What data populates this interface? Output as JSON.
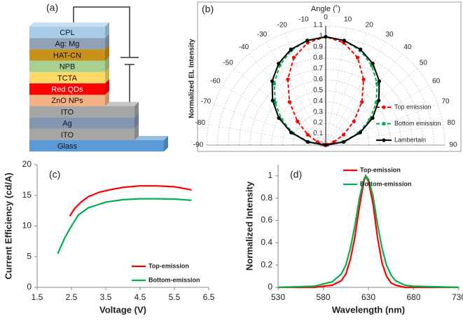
{
  "diagram": {
    "label": "(a)",
    "layers": [
      {
        "name": "CPL",
        "color": "#a9cde8"
      },
      {
        "name": "Ag:  Mg",
        "color": "#8fa2b8"
      },
      {
        "name": "HAT-CN",
        "color": "#c8921a"
      },
      {
        "name": "NPB",
        "color": "#a9d08e"
      },
      {
        "name": "TCTA",
        "color": "#ffd966"
      },
      {
        "name": "Red QDs",
        "color": "#ff0000"
      },
      {
        "name": "ZnO NPs",
        "color": "#f4b183"
      },
      {
        "name": "ITO",
        "color": "#a6a6a6"
      },
      {
        "name": "Ag",
        "color": "#8497b0"
      },
      {
        "name": "ITO",
        "color": "#a6a6a6"
      },
      {
        "name": "Glass",
        "color": "#5b9bd5"
      }
    ]
  },
  "chart_data": [
    {
      "type": "polar",
      "label": "(b)",
      "title": "Angle (˚)",
      "ylabel": "Normalized EL Intensity",
      "x": [
        -90,
        -80,
        -70,
        -60,
        -50,
        -40,
        -30,
        -20,
        -10,
        0,
        10,
        20,
        30,
        40,
        50,
        60,
        70,
        80,
        90
      ],
      "thetaticks": [
        -90,
        -80,
        -70,
        -60,
        -50,
        -40,
        -30,
        -20,
        -10,
        0,
        10,
        20,
        30,
        40,
        50,
        60,
        70,
        80,
        90
      ],
      "rlim": [
        0,
        1.1
      ],
      "rticks": [
        0,
        0.1,
        0.2,
        0.3,
        0.4,
        0.5,
        0.6,
        0.7,
        0.8,
        0.9,
        1,
        1.1
      ],
      "legend": "lower right",
      "grid": true,
      "series": [
        {
          "name": "Top emission",
          "color": "#ff0000",
          "linestyle": "dashed",
          "values": [
            0,
            0.02,
            0.08,
            0.19,
            0.34,
            0.52,
            0.7,
            0.86,
            0.96,
            1,
            0.96,
            0.86,
            0.7,
            0.52,
            0.34,
            0.19,
            0.08,
            0.02,
            0
          ]
        },
        {
          "name": "Bottom emission",
          "color": "#00b050",
          "linestyle": "dashed",
          "values": [
            0,
            0.16,
            0.32,
            0.47,
            0.61,
            0.74,
            0.85,
            0.93,
            0.98,
            1,
            0.98,
            0.93,
            0.85,
            0.74,
            0.61,
            0.47,
            0.32,
            0.16,
            0
          ]
        },
        {
          "name": "Lambertain",
          "color": "#000000",
          "linestyle": "solid",
          "values": [
            0,
            0.17,
            0.34,
            0.5,
            0.64,
            0.77,
            0.87,
            0.94,
            0.98,
            1,
            0.98,
            0.94,
            0.87,
            0.77,
            0.64,
            0.5,
            0.34,
            0.17,
            0
          ]
        }
      ]
    },
    {
      "type": "line",
      "label": "(c)",
      "xlabel": "Voltage (V)",
      "ylabel": "Current Efficiency (cd/A)",
      "xlim": [
        1.5,
        6.5
      ],
      "xticks": [
        1.5,
        2.5,
        3.5,
        4.5,
        5.5,
        6.5
      ],
      "ylim": [
        0,
        20
      ],
      "yticks": [
        0,
        5,
        10,
        15,
        20
      ],
      "legend": "lower right",
      "series": [
        {
          "name": "Top-emission",
          "color": "#ff0000",
          "x": [
            2.45,
            2.6,
            2.8,
            3.0,
            3.3,
            3.6,
            4.0,
            4.5,
            5.0,
            5.5,
            6.0
          ],
          "values": [
            11.6,
            12.9,
            14.0,
            14.8,
            15.5,
            15.9,
            16.3,
            16.55,
            16.55,
            16.4,
            15.9
          ]
        },
        {
          "name": "Bottom-emission",
          "color": "#00b050",
          "x": [
            2.1,
            2.3,
            2.5,
            2.7,
            3.0,
            3.5,
            4.0,
            4.5,
            5.0,
            5.5,
            6.0
          ],
          "values": [
            5.5,
            8.0,
            10.0,
            11.8,
            13.0,
            13.9,
            14.3,
            14.45,
            14.45,
            14.4,
            14.2
          ]
        }
      ]
    },
    {
      "type": "line",
      "label": "(d)",
      "xlabel": "Wavelength (nm)",
      "ylabel": "Normalized Intensity",
      "xlim": [
        530,
        730
      ],
      "xticks": [
        530,
        580,
        630,
        680,
        730
      ],
      "ylim": [
        0,
        1.1
      ],
      "yticks": [
        0,
        0.2,
        0.4,
        0.6,
        0.8,
        1
      ],
      "legend": "upper right",
      "x": [
        530,
        570,
        590,
        600,
        605,
        610,
        615,
        620,
        625,
        627,
        630,
        635,
        640,
        645,
        650,
        655,
        660,
        670,
        680,
        730
      ],
      "series": [
        {
          "name": "Top-emission",
          "color": "#ff0000",
          "values": [
            0,
            0,
            0.02,
            0.06,
            0.12,
            0.25,
            0.45,
            0.72,
            0.95,
            1,
            0.95,
            0.75,
            0.45,
            0.22,
            0.1,
            0.04,
            0.02,
            0,
            0,
            0
          ]
        },
        {
          "name": "Bottom-emission",
          "color": "#00b050",
          "values": [
            0,
            0.01,
            0.05,
            0.12,
            0.2,
            0.35,
            0.55,
            0.8,
            0.97,
            1,
            0.97,
            0.82,
            0.57,
            0.35,
            0.2,
            0.11,
            0.06,
            0.02,
            0.01,
            0
          ]
        }
      ]
    }
  ]
}
